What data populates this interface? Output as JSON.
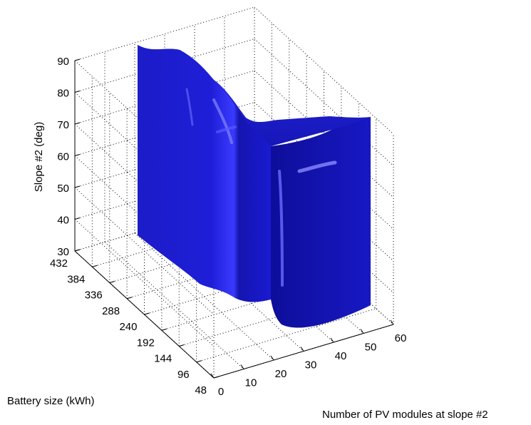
{
  "chart_data": {
    "type": "surface3d",
    "title": "",
    "xlabel": "Number of PV modules at slope #2",
    "ylabel": "Battery size (kWh)",
    "zlabel": "Slope #2 (deg)",
    "x_ticks": [
      "0",
      "10",
      "20",
      "30",
      "40",
      "50",
      "60"
    ],
    "y_ticks": [
      "48",
      "96",
      "144",
      "192",
      "240",
      "288",
      "336",
      "384",
      "432"
    ],
    "z_ticks": [
      "30",
      "40",
      "50",
      "60",
      "70",
      "80",
      "90"
    ],
    "xlim": [
      0,
      60
    ],
    "ylim": [
      48,
      432
    ],
    "zlim": [
      30,
      90
    ],
    "grid": true,
    "surface_color": "#1a1ad0",
    "description_of_surface": "",
    "surface_points": [
      {
        "pv_modules": 6,
        "battery_kWh": 432,
        "slope_top": 89,
        "slope_bottom": 38
      },
      {
        "pv_modules": 6,
        "battery_kWh": 360,
        "slope_top": 89,
        "slope_bottom": 38
      },
      {
        "pv_modules": 6,
        "battery_kWh": 288,
        "slope_top": 82,
        "slope_bottom": 38
      },
      {
        "pv_modules": 6,
        "battery_kWh": 216,
        "slope_top": 72,
        "slope_bottom": 38
      },
      {
        "pv_modules": 6,
        "battery_kWh": 168,
        "slope_top": 70,
        "slope_bottom": 38
      },
      {
        "pv_modules": 6,
        "battery_kWh": 48,
        "slope_top": 70,
        "slope_bottom": 38
      }
    ]
  }
}
